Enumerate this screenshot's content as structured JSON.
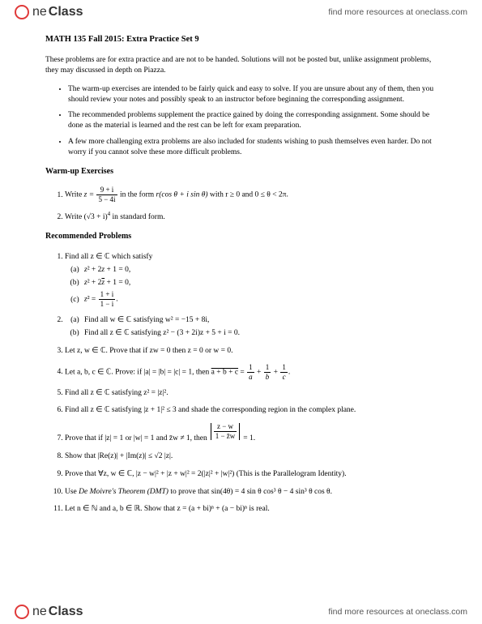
{
  "brand": {
    "part1": "ne",
    "part2": "Class",
    "tagline": "find more resources at oneclass.com"
  },
  "title": "MATH 135 Fall 2015: Extra Practice Set 9",
  "intro": "These problems are for extra practice and are not to be handed. Solutions will not be posted but, unlike assignment problems, they may discussed in depth on Piazza.",
  "bullets": [
    "The warm-up exercises are intended to be fairly quick and easy to solve. If you are unsure about any of them, then you should review your notes and possibly speak to an instructor before beginning the corresponding assignment.",
    "The recommended problems supplement the practice gained by doing the corresponding assignment. Some should be done as the material is learned and the rest can be left for exam preparation.",
    "A few more challenging extra problems are also included for students wishing to push themselves even harder. Do not worry if you cannot solve these more difficult problems."
  ],
  "sections": {
    "warmup": "Warm-up Exercises",
    "recommended": "Recommended Problems"
  },
  "warmup": {
    "p1_pre": "Write ",
    "p1_post": " in the form ",
    "p1_form": "r(cos θ + i sin θ)",
    "p1_cond": " with r ≥ 0 and 0 ≤ θ < 2π.",
    "frac1_num": "9 + i",
    "frac1_den": "5 − 4i",
    "p2_pre": "Write (√3 + i)",
    "p2_exp": "4",
    "p2_post": " in standard form."
  },
  "rec": {
    "p1": "Find all z ∈ ℂ which satisfy",
    "p1a": "z² + 2z + 1 = 0,",
    "p1b": "z² + 2z̄ + 1 = 0,",
    "p1c_pre": "z² = ",
    "p1c_num": "1 + i",
    "p1c_den": "1 − i",
    "p1c_post": ".",
    "p2a": "Find all w ∈ ℂ satisfying w² = −15 + 8i,",
    "p2b": "Find all z ∈ ℂ satisfying z² − (3 + 2i)z + 5 + i = 0.",
    "p3": "Let z, w ∈ ℂ. Prove that if zw = 0 then z = 0 or w = 0.",
    "p4_pre": "Let a, b, c ∈ ℂ. Prove: if |a| = |b| = |c| = 1, then ",
    "p4_ov": "a + b + c",
    "p4_mid": " = ",
    "p4_post": ".",
    "p5": "Find all z ∈ ℂ satisfying z² = |z|².",
    "p6": "Find all z ∈ ℂ satisfying |z + 1|² ≤ 3 and shade the corresponding region in the complex plane.",
    "p7_pre": "Prove that if |z| = 1 or |w| = 1 and z̄w ≠ 1, then ",
    "p7_num": "z − w",
    "p7_den": "1 − z̄w",
    "p7_post": " = 1.",
    "p8": "Show that |Re(z)| + |Im(z)| ≤ √2 |z|.",
    "p9": "Prove that ∀z, w ∈ ℂ, |z − w|² + |z + w|² = 2(|z|² + |w|²) (This is the Parallelogram Identity).",
    "p10_pre": "Use ",
    "p10_em": "De Moivre's Theorem (DMT)",
    "p10_post": " to prove that sin(4θ) = 4 sin θ cos³ θ − 4 sin³ θ cos θ.",
    "p11": "Let n ∈ ℕ and a, b ∈ ℝ. Show that z = (a + bi)ⁿ + (a − bi)ⁿ is real."
  }
}
